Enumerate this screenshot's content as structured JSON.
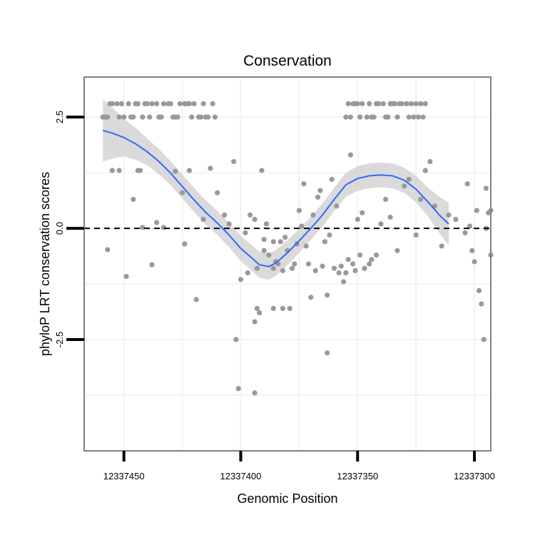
{
  "chart_data": {
    "type": "scatter",
    "title": "Conservation",
    "xlabel": "Genomic Position",
    "ylabel": "phyloP LRT conservation scores",
    "x_reversed": true,
    "xlim": [
      12337467,
      12337293
    ],
    "ylim": [
      -5,
      3.4
    ],
    "x_ticks": [
      {
        "value": 12337450,
        "label": "12337450"
      },
      {
        "value": 12337400,
        "label": "12337400"
      },
      {
        "value": 12337350,
        "label": "12337350"
      },
      {
        "value": 12337300,
        "label": "12337300"
      }
    ],
    "y_ticks": [
      {
        "value": 2.5,
        "label": "2.5"
      },
      {
        "value": 0,
        "label": "0.0"
      },
      {
        "value": -2.5,
        "label": "-2.5"
      }
    ],
    "reference_line": {
      "y": 0,
      "style": "dashed"
    },
    "point_color": "#999999",
    "smooth_color": "#3366ff",
    "band_color": "#d3d3d3",
    "points": [
      {
        "x": 12337459,
        "y": 2.5
      },
      {
        "x": 12337458,
        "y": 2.5
      },
      {
        "x": 12337457,
        "y": 2.5
      },
      {
        "x": 12337456,
        "y": 2.8
      },
      {
        "x": 12337455,
        "y": 2.8
      },
      {
        "x": 12337453,
        "y": 2.8
      },
      {
        "x": 12337452,
        "y": 2.5
      },
      {
        "x": 12337451,
        "y": 2.8
      },
      {
        "x": 12337450,
        "y": 2.5
      },
      {
        "x": 12337448,
        "y": 2.8
      },
      {
        "x": 12337447,
        "y": 2.5
      },
      {
        "x": 12337446,
        "y": 2.5
      },
      {
        "x": 12337445,
        "y": 2.8
      },
      {
        "x": 12337444,
        "y": 2.8
      },
      {
        "x": 12337442,
        "y": 2.5
      },
      {
        "x": 12337441,
        "y": 2.8
      },
      {
        "x": 12337440,
        "y": 2.8
      },
      {
        "x": 12337439,
        "y": 2.5
      },
      {
        "x": 12337438,
        "y": 2.8
      },
      {
        "x": 12337436,
        "y": 2.8
      },
      {
        "x": 12337435,
        "y": 2.5
      },
      {
        "x": 12337434,
        "y": 2.5
      },
      {
        "x": 12337433,
        "y": 2.8
      },
      {
        "x": 12337431,
        "y": 2.8
      },
      {
        "x": 12337430,
        "y": 2.8
      },
      {
        "x": 12337429,
        "y": 2.5
      },
      {
        "x": 12337428,
        "y": 2.5
      },
      {
        "x": 12337427,
        "y": 2.5
      },
      {
        "x": 12337426,
        "y": 2.8
      },
      {
        "x": 12337424,
        "y": 2.8
      },
      {
        "x": 12337423,
        "y": 2.8
      },
      {
        "x": 12337422,
        "y": 2.8
      },
      {
        "x": 12337421,
        "y": 2.5
      },
      {
        "x": 12337420,
        "y": 2.8
      },
      {
        "x": 12337418,
        "y": 2.5
      },
      {
        "x": 12337417,
        "y": 2.5
      },
      {
        "x": 12337416,
        "y": 2.8
      },
      {
        "x": 12337415,
        "y": 2.5
      },
      {
        "x": 12337414,
        "y": 2.5
      },
      {
        "x": 12337412,
        "y": 2.8
      },
      {
        "x": 12337411,
        "y": 2.5
      },
      {
        "x": 12337355,
        "y": 2.5
      },
      {
        "x": 12337354,
        "y": 2.8
      },
      {
        "x": 12337353,
        "y": 2.5
      },
      {
        "x": 12337352,
        "y": 2.8
      },
      {
        "x": 12337351,
        "y": 2.8
      },
      {
        "x": 12337350,
        "y": 2.8
      },
      {
        "x": 12337349,
        "y": 2.5
      },
      {
        "x": 12337348,
        "y": 2.8
      },
      {
        "x": 12337346,
        "y": 2.5
      },
      {
        "x": 12337345,
        "y": 2.8
      },
      {
        "x": 12337344,
        "y": 2.5
      },
      {
        "x": 12337343,
        "y": 2.5
      },
      {
        "x": 12337342,
        "y": 2.8
      },
      {
        "x": 12337341,
        "y": 2.8
      },
      {
        "x": 12337339,
        "y": 2.8
      },
      {
        "x": 12337338,
        "y": 2.5
      },
      {
        "x": 12337337,
        "y": 2.5
      },
      {
        "x": 12337336,
        "y": 2.8
      },
      {
        "x": 12337335,
        "y": 2.8
      },
      {
        "x": 12337334,
        "y": 2.8
      },
      {
        "x": 12337333,
        "y": 2.5
      },
      {
        "x": 12337332,
        "y": 2.8
      },
      {
        "x": 12337331,
        "y": 2.8
      },
      {
        "x": 12337329,
        "y": 2.8
      },
      {
        "x": 12337328,
        "y": 2.5
      },
      {
        "x": 12337327,
        "y": 2.8
      },
      {
        "x": 12337326,
        "y": 2.5
      },
      {
        "x": 12337325,
        "y": 2.8
      },
      {
        "x": 12337324,
        "y": 2.5
      },
      {
        "x": 12337323,
        "y": 2.8
      },
      {
        "x": 12337322,
        "y": 2.5
      },
      {
        "x": 12337321,
        "y": 2.8
      },
      {
        "x": 12337457,
        "y": -0.48
      },
      {
        "x": 12337455,
        "y": 1.3
      },
      {
        "x": 12337452,
        "y": 1.3
      },
      {
        "x": 12337449,
        "y": -1.08
      },
      {
        "x": 12337446,
        "y": 0.65
      },
      {
        "x": 12337444,
        "y": 1.3
      },
      {
        "x": 12337443,
        "y": 1.3
      },
      {
        "x": 12337442,
        "y": 0.02
      },
      {
        "x": 12337438,
        "y": -0.82
      },
      {
        "x": 12337436,
        "y": 0.13
      },
      {
        "x": 12337433,
        "y": 0.02
      },
      {
        "x": 12337428,
        "y": 1.28
      },
      {
        "x": 12337425,
        "y": 0.8
      },
      {
        "x": 12337424,
        "y": -0.35
      },
      {
        "x": 12337422,
        "y": 1.3
      },
      {
        "x": 12337419,
        "y": -1.6
      },
      {
        "x": 12337416,
        "y": 0.2
      },
      {
        "x": 12337413,
        "y": 1.35
      },
      {
        "x": 12337410,
        "y": 0.8
      },
      {
        "x": 12337407,
        "y": 0.3
      },
      {
        "x": 12337405,
        "y": 0.1
      },
      {
        "x": 12337403,
        "y": 1.5
      },
      {
        "x": 12337402,
        "y": -2.5
      },
      {
        "x": 12337401,
        "y": -3.6
      },
      {
        "x": 12337400,
        "y": -1.15
      },
      {
        "x": 12337398,
        "y": -0.1
      },
      {
        "x": 12337397,
        "y": -1.0
      },
      {
        "x": 12337396,
        "y": 0.3
      },
      {
        "x": 12337394,
        "y": -2.1
      },
      {
        "x": 12337394,
        "y": 0.2
      },
      {
        "x": 12337393,
        "y": -0.9
      },
      {
        "x": 12337392,
        "y": -1.9
      },
      {
        "x": 12337391,
        "y": 1.3
      },
      {
        "x": 12337390,
        "y": -0.25
      },
      {
        "x": 12337390,
        "y": -0.5
      },
      {
        "x": 12337389,
        "y": 0.1
      },
      {
        "x": 12337388,
        "y": -0.6
      },
      {
        "x": 12337386,
        "y": -0.3
      },
      {
        "x": 12337386,
        "y": -0.9
      },
      {
        "x": 12337385,
        "y": -0.75
      },
      {
        "x": 12337384,
        "y": -0.8
      },
      {
        "x": 12337383,
        "y": -0.3
      },
      {
        "x": 12337382,
        "y": -0.95
      },
      {
        "x": 12337382,
        "y": -1.8
      },
      {
        "x": 12337381,
        "y": -0.2
      },
      {
        "x": 12337380,
        "y": -0.5
      },
      {
        "x": 12337379,
        "y": -1.8
      },
      {
        "x": 12337378,
        "y": -0.9
      },
      {
        "x": 12337377,
        "y": -0.8
      },
      {
        "x": 12337376,
        "y": -0.35
      },
      {
        "x": 12337375,
        "y": 0.4
      },
      {
        "x": 12337374,
        "y": 0.05
      },
      {
        "x": 12337373,
        "y": 1.0
      },
      {
        "x": 12337372,
        "y": -0.4
      },
      {
        "x": 12337371,
        "y": -0.8
      },
      {
        "x": 12337370,
        "y": -1.55
      },
      {
        "x": 12337369,
        "y": 0.3
      },
      {
        "x": 12337368,
        "y": -0.95
      },
      {
        "x": 12337367,
        "y": 0.7
      },
      {
        "x": 12337366,
        "y": 0.85
      },
      {
        "x": 12337365,
        "y": -0.85
      },
      {
        "x": 12337364,
        "y": -0.3
      },
      {
        "x": 12337363,
        "y": -2.8
      },
      {
        "x": 12337363,
        "y": -1.5
      },
      {
        "x": 12337362,
        "y": -0.15
      },
      {
        "x": 12337361,
        "y": 1.1
      },
      {
        "x": 12337360,
        "y": -0.9
      },
      {
        "x": 12337359,
        "y": 0.5
      },
      {
        "x": 12337358,
        "y": -1.0
      },
      {
        "x": 12337357,
        "y": -0.85
      },
      {
        "x": 12337356,
        "y": -1.2
      },
      {
        "x": 12337355,
        "y": -1.0
      },
      {
        "x": 12337354,
        "y": -0.7
      },
      {
        "x": 12337353,
        "y": 1.65
      },
      {
        "x": 12337352,
        "y": -0.8
      },
      {
        "x": 12337351,
        "y": -0.95
      },
      {
        "x": 12337350,
        "y": 0.2
      },
      {
        "x": 12337349,
        "y": -0.6
      },
      {
        "x": 12337348,
        "y": 0.35
      },
      {
        "x": 12337347,
        "y": -0.9
      },
      {
        "x": 12337345,
        "y": -0.8
      },
      {
        "x": 12337344,
        "y": -0.7
      },
      {
        "x": 12337342,
        "y": -0.6
      },
      {
        "x": 12337340,
        "y": 0.1
      },
      {
        "x": 12337338,
        "y": 0.65
      },
      {
        "x": 12337336,
        "y": 0.25
      },
      {
        "x": 12337333,
        "y": -0.5
      },
      {
        "x": 12337330,
        "y": 0.95
      },
      {
        "x": 12337328,
        "y": 1.1
      },
      {
        "x": 12337325,
        "y": -0.15
      },
      {
        "x": 12337323,
        "y": 0.65
      },
      {
        "x": 12337321,
        "y": 1.3
      },
      {
        "x": 12337319,
        "y": 1.5
      },
      {
        "x": 12337317,
        "y": 0.5
      },
      {
        "x": 12337314,
        "y": -0.4
      },
      {
        "x": 12337311,
        "y": 0.3
      },
      {
        "x": 12337304,
        "y": -0.1
      },
      {
        "x": 12337303,
        "y": 1.0
      },
      {
        "x": 12337302,
        "y": 0.05
      },
      {
        "x": 12337301,
        "y": -0.5
      },
      {
        "x": 12337300,
        "y": -0.75
      },
      {
        "x": 12337299,
        "y": 0.4
      },
      {
        "x": 12337298,
        "y": -1.4
      },
      {
        "x": 12337297,
        "y": -1.7
      },
      {
        "x": 12337296,
        "y": -2.5
      },
      {
        "x": 12337295,
        "y": 0.9
      },
      {
        "x": 12337295,
        "y": 0.0
      },
      {
        "x": 12337294,
        "y": 0.35
      },
      {
        "x": 12337293,
        "y": 0.4
      },
      {
        "x": 12337293,
        "y": -0.6
      },
      {
        "x": 12337308,
        "y": 0.2
      },
      {
        "x": 12337386,
        "y": -1.8
      },
      {
        "x": 12337394,
        "y": -3.7
      },
      {
        "x": 12337393,
        "y": -1.8
      }
    ],
    "smooth_curve": [
      {
        "x": 12337459,
        "y": 2.2
      },
      {
        "x": 12337455,
        "y": 2.14
      },
      {
        "x": 12337450,
        "y": 2.04
      },
      {
        "x": 12337445,
        "y": 1.9
      },
      {
        "x": 12337440,
        "y": 1.72
      },
      {
        "x": 12337435,
        "y": 1.5
      },
      {
        "x": 12337430,
        "y": 1.24
      },
      {
        "x": 12337425,
        "y": 0.94
      },
      {
        "x": 12337420,
        "y": 0.64
      },
      {
        "x": 12337415,
        "y": 0.36
      },
      {
        "x": 12337410,
        "y": 0.12
      },
      {
        "x": 12337405,
        "y": -0.15
      },
      {
        "x": 12337400,
        "y": -0.45
      },
      {
        "x": 12337395,
        "y": -0.68
      },
      {
        "x": 12337392,
        "y": -0.82
      },
      {
        "x": 12337388,
        "y": -0.86
      },
      {
        "x": 12337385,
        "y": -0.78
      },
      {
        "x": 12337380,
        "y": -0.55
      },
      {
        "x": 12337375,
        "y": -0.28
      },
      {
        "x": 12337370,
        "y": 0.0
      },
      {
        "x": 12337365,
        "y": 0.3
      },
      {
        "x": 12337360,
        "y": 0.65
      },
      {
        "x": 12337355,
        "y": 0.98
      },
      {
        "x": 12337350,
        "y": 1.12
      },
      {
        "x": 12337345,
        "y": 1.18
      },
      {
        "x": 12337340,
        "y": 1.2
      },
      {
        "x": 12337335,
        "y": 1.18
      },
      {
        "x": 12337330,
        "y": 1.08
      },
      {
        "x": 12337325,
        "y": 0.88
      },
      {
        "x": 12337320,
        "y": 0.6
      },
      {
        "x": 12337315,
        "y": 0.3
      },
      {
        "x": 12337311,
        "y": 0.1
      }
    ],
    "band_halfwidth": [
      {
        "x": 12337459,
        "y": 0.7
      },
      {
        "x": 12337450,
        "y": 0.42
      },
      {
        "x": 12337440,
        "y": 0.3
      },
      {
        "x": 12337430,
        "y": 0.27
      },
      {
        "x": 12337420,
        "y": 0.27
      },
      {
        "x": 12337410,
        "y": 0.27
      },
      {
        "x": 12337400,
        "y": 0.28
      },
      {
        "x": 12337390,
        "y": 0.3
      },
      {
        "x": 12337380,
        "y": 0.28
      },
      {
        "x": 12337370,
        "y": 0.26
      },
      {
        "x": 12337360,
        "y": 0.26
      },
      {
        "x": 12337350,
        "y": 0.28
      },
      {
        "x": 12337340,
        "y": 0.28
      },
      {
        "x": 12337330,
        "y": 0.28
      },
      {
        "x": 12337320,
        "y": 0.32
      },
      {
        "x": 12337311,
        "y": 0.48
      }
    ]
  }
}
